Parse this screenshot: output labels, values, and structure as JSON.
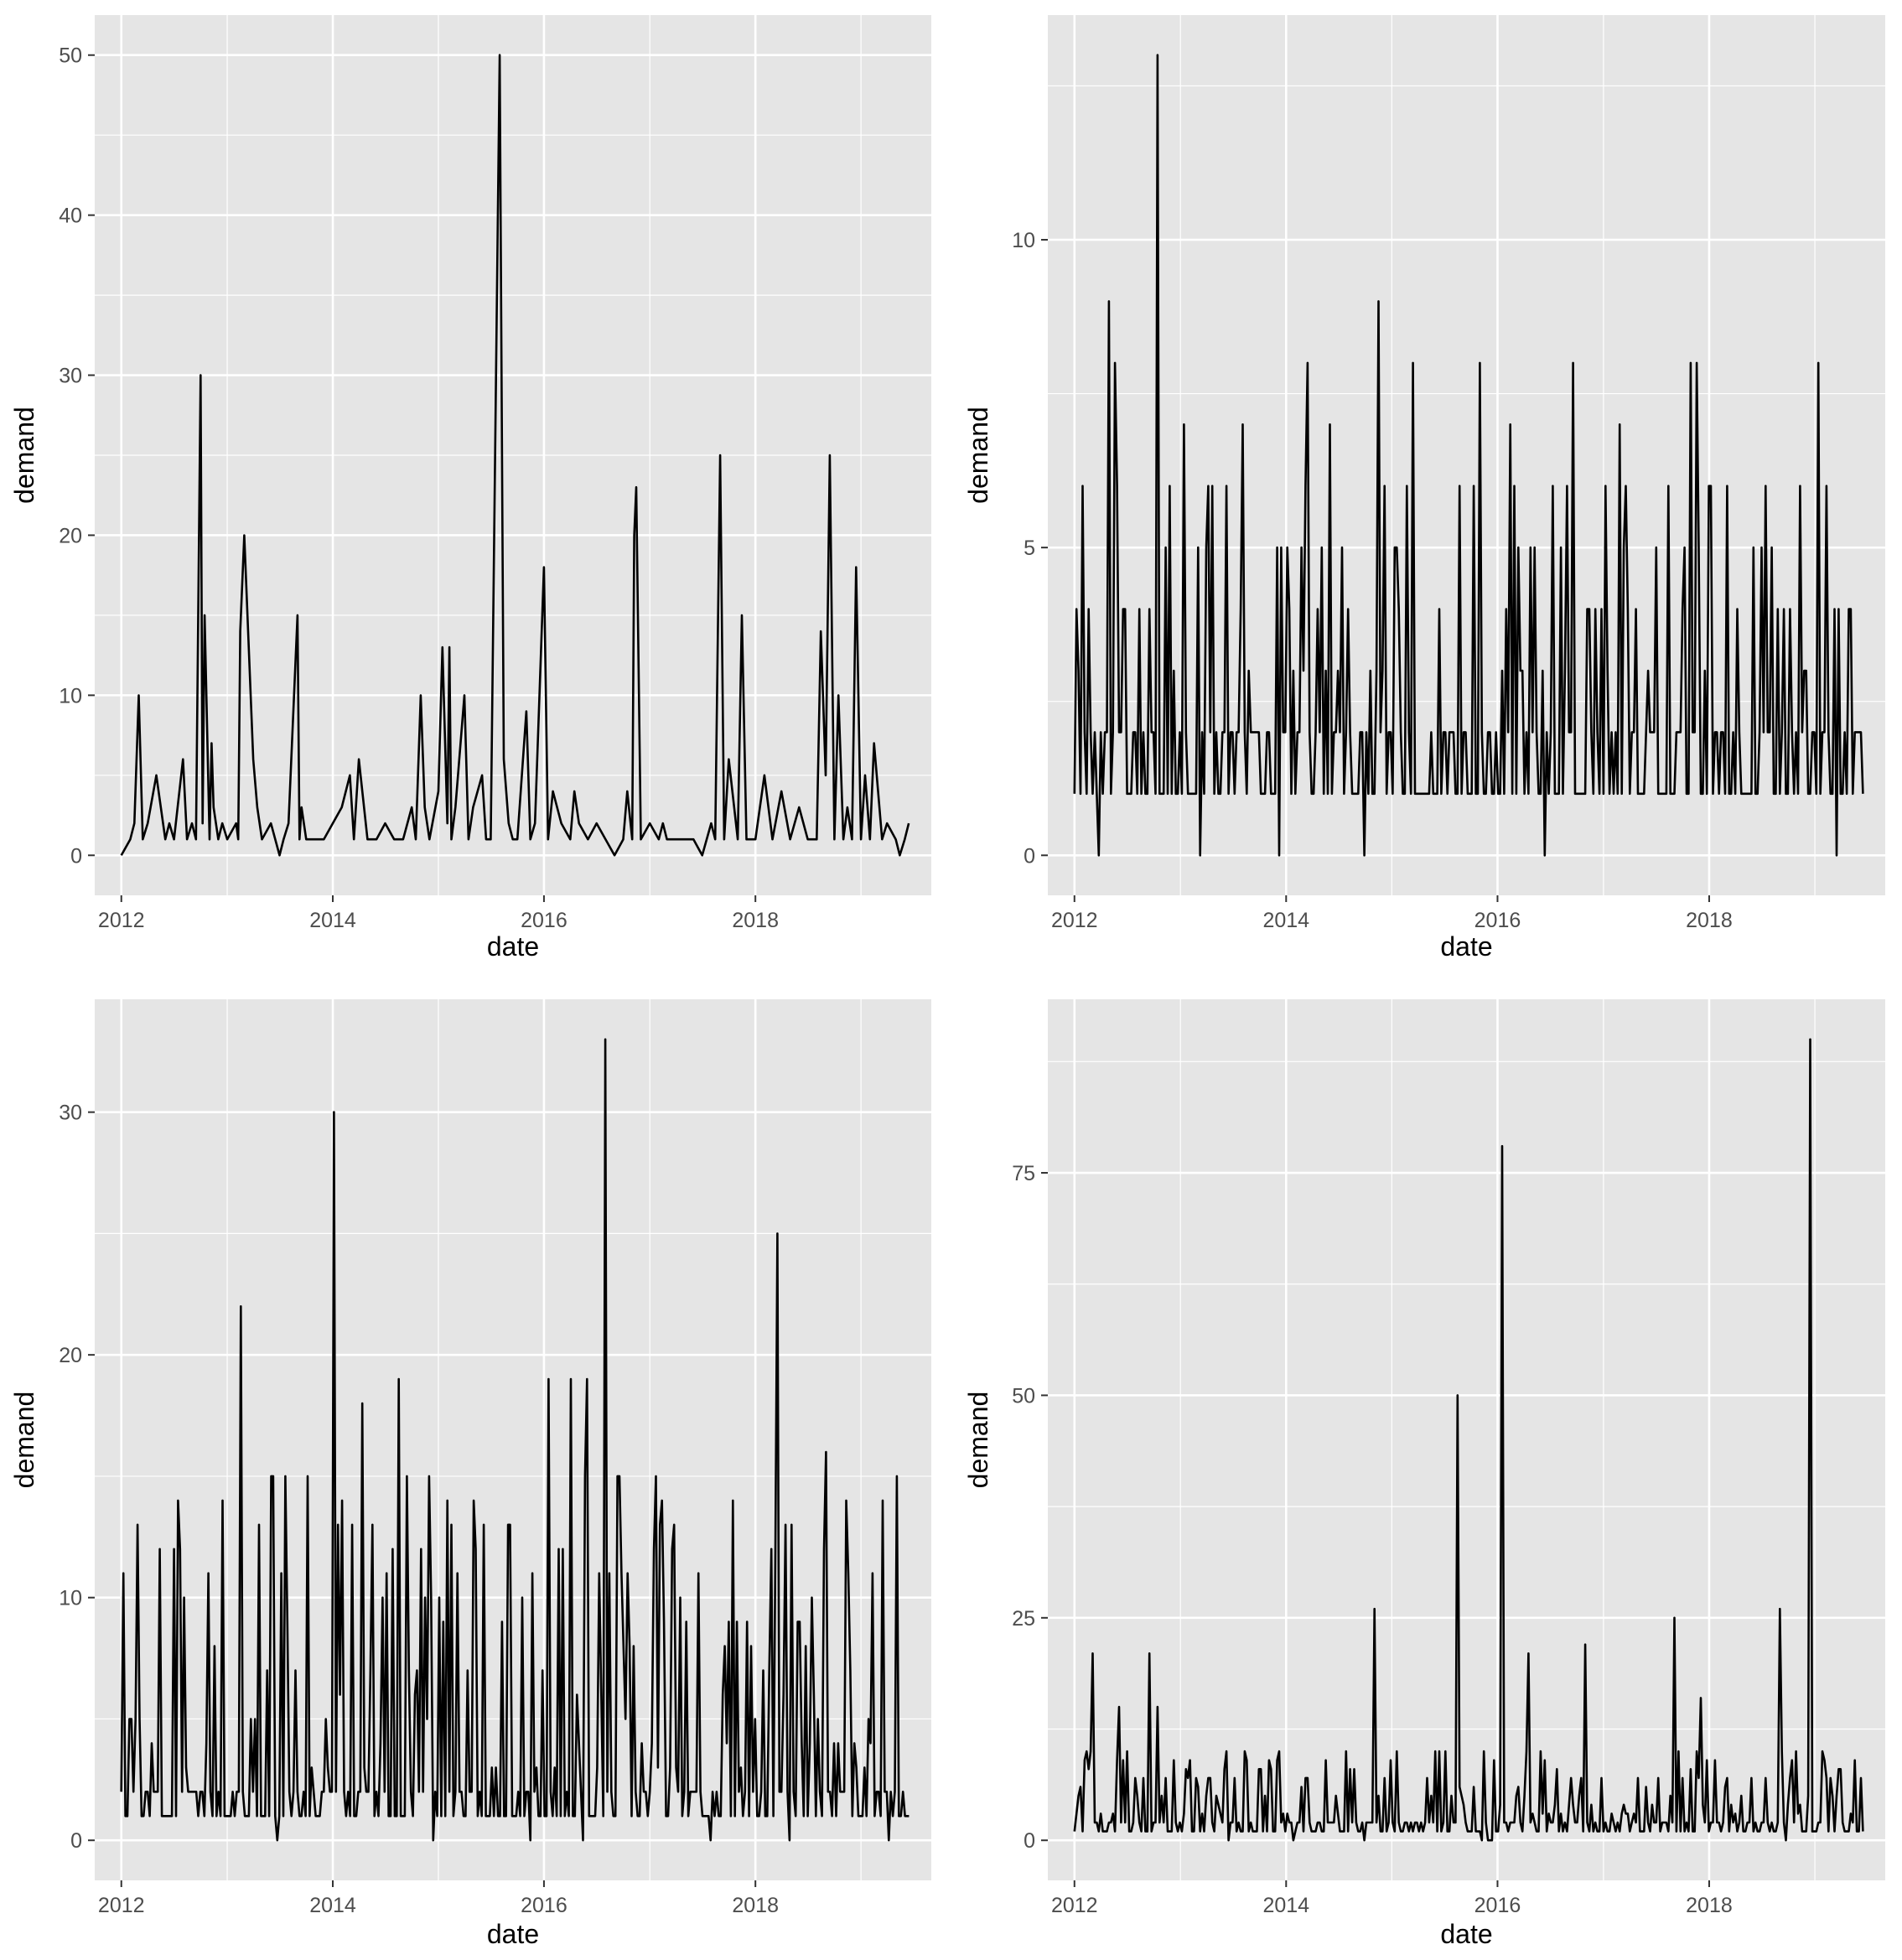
{
  "colors": {
    "panel_background": "#e5e5e5",
    "gridline": "#ffffff",
    "series_line": "#000000",
    "tick_text": "#4d4d4d",
    "axis_title_text": "#000000"
  },
  "chart_data": [
    {
      "type": "line",
      "layout": "2x2 grid, top-left",
      "title": "",
      "xlabel": "date",
      "ylabel": "demand",
      "xlim": [
        "2011-10-01",
        "2019-09-01"
      ],
      "ylim": [
        -2.5,
        52.5
      ],
      "x_ticks": [
        "2012",
        "2014",
        "2016",
        "2018"
      ],
      "y_ticks": [
        0,
        10,
        20,
        30,
        40,
        50
      ],
      "grid": true,
      "legend": "none",
      "series": [
        {
          "x": [
            "2012-01-01",
            "2012-02-01",
            "2012-02-15",
            "2012-03-01",
            "2012-03-15",
            "2012-04-01",
            "2012-05-01",
            "2012-06-01",
            "2012-06-15",
            "2012-07-01",
            "2012-08-01",
            "2012-08-15",
            "2012-09-01",
            "2012-09-15",
            "2012-10-01",
            "2012-10-08",
            "2012-10-15",
            "2012-11-01",
            "2012-11-08",
            "2012-11-15",
            "2012-12-01",
            "2012-12-15",
            "2013-01-01",
            "2013-02-01",
            "2013-02-08",
            "2013-02-15",
            "2013-03-01",
            "2013-04-01",
            "2013-04-15",
            "2013-05-01",
            "2013-06-01",
            "2013-07-01",
            "2013-07-15",
            "2013-08-01",
            "2013-09-01",
            "2013-09-08",
            "2013-09-15",
            "2013-10-01",
            "2013-11-01",
            "2013-12-01",
            "2014-01-01",
            "2014-02-01",
            "2014-03-01",
            "2014-03-15",
            "2014-04-01",
            "2014-05-01",
            "2014-05-15",
            "2014-06-01",
            "2014-07-01",
            "2014-08-01",
            "2014-09-01",
            "2014-10-01",
            "2014-10-15",
            "2014-11-01",
            "2014-11-15",
            "2014-12-01",
            "2015-01-01",
            "2015-01-15",
            "2015-02-01",
            "2015-02-08",
            "2015-02-15",
            "2015-03-01",
            "2015-04-01",
            "2015-04-15",
            "2015-05-01",
            "2015-06-01",
            "2015-06-15",
            "2015-07-01",
            "2015-08-01",
            "2015-08-15",
            "2015-09-01",
            "2015-09-15",
            "2015-10-01",
            "2015-11-01",
            "2015-11-15",
            "2015-12-01",
            "2016-01-01",
            "2016-01-15",
            "2016-02-01",
            "2016-03-01",
            "2016-04-01",
            "2016-04-15",
            "2016-05-01",
            "2016-06-01",
            "2016-07-01",
            "2016-08-01",
            "2016-09-01",
            "2016-10-01",
            "2016-10-15",
            "2016-11-01",
            "2016-11-08",
            "2016-11-15",
            "2016-12-01",
            "2017-01-01",
            "2017-02-01",
            "2017-02-15",
            "2017-03-01",
            "2017-04-01",
            "2017-05-01",
            "2017-06-01",
            "2017-07-01",
            "2017-08-01",
            "2017-08-15",
            "2017-09-01",
            "2017-09-15",
            "2017-10-01",
            "2017-11-01",
            "2017-11-15",
            "2017-12-01",
            "2018-01-01",
            "2018-02-01",
            "2018-03-01",
            "2018-04-01",
            "2018-05-01",
            "2018-06-01",
            "2018-07-01",
            "2018-08-01",
            "2018-08-15",
            "2018-09-01",
            "2018-09-15",
            "2018-10-01",
            "2018-10-15",
            "2018-11-01",
            "2018-11-15",
            "2018-12-01",
            "2018-12-15",
            "2019-01-01",
            "2019-01-15",
            "2019-02-01",
            "2019-02-15",
            "2019-03-01",
            "2019-03-15",
            "2019-04-01",
            "2019-05-01",
            "2019-05-15",
            "2019-06-01",
            "2019-06-15"
          ],
          "values": [
            0,
            1,
            2,
            10,
            1,
            2,
            5,
            1,
            2,
            1,
            6,
            1,
            2,
            1,
            30,
            2,
            15,
            1,
            7,
            3,
            1,
            2,
            1,
            2,
            1,
            14,
            20,
            6,
            3,
            1,
            2,
            0,
            1,
            2,
            15,
            1,
            3,
            1,
            1,
            1,
            2,
            3,
            5,
            1,
            6,
            1,
            1,
            1,
            2,
            1,
            1,
            3,
            1,
            10,
            3,
            1,
            4,
            13,
            2,
            13,
            1,
            3,
            10,
            1,
            3,
            5,
            1,
            1,
            50,
            6,
            2,
            1,
            1,
            9,
            1,
            2,
            18,
            1,
            4,
            2,
            1,
            4,
            2,
            1,
            2,
            1,
            0,
            1,
            4,
            1,
            20,
            23,
            1,
            2,
            1,
            2,
            1,
            1,
            1,
            1,
            0,
            2,
            1,
            25,
            1,
            6,
            1,
            15,
            1,
            1,
            5,
            1,
            4,
            1,
            3,
            1,
            1,
            14,
            5,
            25,
            1,
            10,
            1,
            3,
            1,
            18,
            1,
            5,
            1,
            7,
            4,
            1,
            2,
            1,
            0,
            1,
            2
          ]
        }
      ]
    },
    {
      "type": "line",
      "layout": "2x2 grid, top-right",
      "title": "",
      "xlabel": "date",
      "ylabel": "demand",
      "xlim": [
        "2011-10-01",
        "2019-09-01"
      ],
      "ylim": [
        -0.65,
        13.65
      ],
      "x_ticks": [
        "2012",
        "2014",
        "2016",
        "2018"
      ],
      "y_ticks": [
        0,
        5,
        10
      ],
      "grid": true,
      "legend": "none",
      "series": [
        {
          "x_start": "2012-01-01",
          "x_step": "7 days",
          "note_x": "weekly observations from 2012-01 to 2019-06",
          "spikes": [
            {
              "x": "2012-05-01",
              "value": 9
            },
            {
              "x": "2012-05-22",
              "value": 8
            },
            {
              "x": "2012-10-15",
              "value": 13
            },
            {
              "x": "2013-01-15",
              "value": 7
            },
            {
              "x": "2013-08-01",
              "value": 7
            },
            {
              "x": "2014-03-15",
              "value": 8
            },
            {
              "x": "2014-06-01",
              "value": 7
            },
            {
              "x": "2014-11-15",
              "value": 9
            },
            {
              "x": "2015-03-15",
              "value": 8
            },
            {
              "x": "2015-11-01",
              "value": 8
            },
            {
              "x": "2016-02-15",
              "value": 7
            },
            {
              "x": "2016-09-15",
              "value": 8
            },
            {
              "x": "2017-03-01",
              "value": 7
            },
            {
              "x": "2017-11-01",
              "value": 8
            },
            {
              "x": "2017-11-22",
              "value": 8
            },
            {
              "x": "2019-01-15",
              "value": 8
            }
          ],
          "baseline_range": [
            0,
            6
          ]
        }
      ]
    },
    {
      "type": "line",
      "layout": "2x2 grid, bottom-left",
      "title": "",
      "xlabel": "date",
      "ylabel": "demand",
      "xlim": [
        "2011-10-01",
        "2019-09-01"
      ],
      "ylim": [
        -1.65,
        34.65
      ],
      "x_ticks": [
        "2012",
        "2014",
        "2016",
        "2018"
      ],
      "y_ticks": [
        0,
        10,
        20,
        30
      ],
      "grid": true,
      "legend": "none",
      "series": [
        {
          "x_start": "2012-01-01",
          "x_step": "7 days",
          "spikes": [
            {
              "x": "2013-02-15",
              "value": 22
            },
            {
              "x": "2014-01-08",
              "value": 30
            },
            {
              "x": "2014-04-15",
              "value": 18
            },
            {
              "x": "2014-08-15",
              "value": 19
            },
            {
              "x": "2016-01-15",
              "value": 19
            },
            {
              "x": "2016-04-01",
              "value": 19
            },
            {
              "x": "2016-06-01",
              "value": 19
            },
            {
              "x": "2016-08-01",
              "value": 33
            },
            {
              "x": "2018-03-15",
              "value": 25
            },
            {
              "x": "2018-09-01",
              "value": 16
            }
          ],
          "baseline_range": [
            0,
            15
          ]
        }
      ]
    },
    {
      "type": "line",
      "layout": "2x2 grid, bottom-right",
      "title": "",
      "xlabel": "date",
      "ylabel": "demand",
      "xlim": [
        "2011-10-01",
        "2019-09-01"
      ],
      "ylim": [
        -4.5,
        94.5
      ],
      "x_ticks": [
        "2012",
        "2014",
        "2016",
        "2018"
      ],
      "y_ticks": [
        0,
        25,
        50,
        75
      ],
      "grid": true,
      "legend": "none",
      "series": [
        {
          "x_start": "2012-01-01",
          "x_step": "7 days",
          "spikes": [
            {
              "x": "2012-03-01",
              "value": 21
            },
            {
              "x": "2012-06-01",
              "value": 15
            },
            {
              "x": "2012-09-15",
              "value": 21
            },
            {
              "x": "2012-10-15",
              "value": 15
            },
            {
              "x": "2014-11-01",
              "value": 26
            },
            {
              "x": "2015-08-15",
              "value": 50
            },
            {
              "x": "2016-01-15",
              "value": 78
            },
            {
              "x": "2016-04-15",
              "value": 21
            },
            {
              "x": "2016-11-01",
              "value": 22
            },
            {
              "x": "2017-09-01",
              "value": 25
            },
            {
              "x": "2017-12-01",
              "value": 16
            },
            {
              "x": "2018-09-01",
              "value": 26
            },
            {
              "x": "2018-12-15",
              "value": 90
            }
          ],
          "baseline_range": [
            0,
            10
          ]
        }
      ]
    }
  ]
}
